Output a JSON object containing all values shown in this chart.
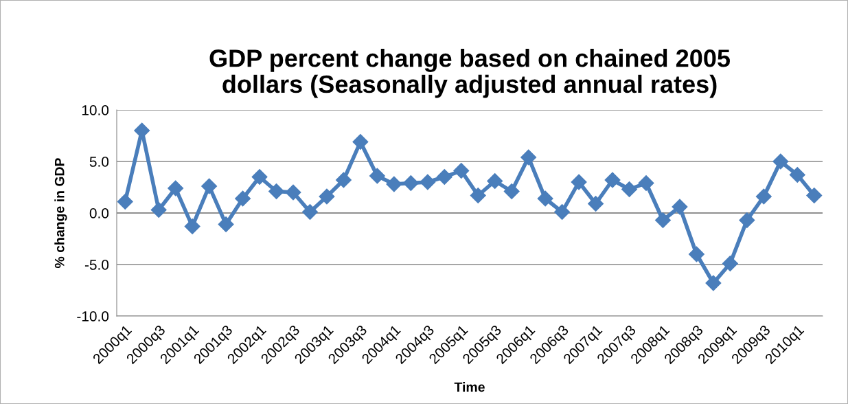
{
  "chart_data": {
    "type": "line",
    "title": "GDP percent change based on chained 2005\ndollars (Seasonally adjusted annual rates)",
    "xlabel": "Time",
    "ylabel": "% change in GDP",
    "categories": [
      "2000q1",
      null,
      "2000q3",
      null,
      "2001q1",
      null,
      "2001q3",
      null,
      "2002q1",
      null,
      "2002q3",
      null,
      "2003q1",
      null,
      "2003q3",
      null,
      "2004q1",
      null,
      "2004q3",
      null,
      "2005q1",
      null,
      "2005q3",
      null,
      "2006q1",
      null,
      "2006q3",
      null,
      "2007q1",
      null,
      "2007q3",
      null,
      "2008q1",
      null,
      "2008q3",
      null,
      "2009q1",
      null,
      "2009q3",
      null,
      "2010q1",
      null
    ],
    "series": [
      {
        "color": "#4a7ebb",
        "values": [
          1.1,
          8.0,
          0.3,
          2.4,
          -1.3,
          2.6,
          -1.1,
          1.4,
          3.5,
          2.1,
          2.0,
          0.1,
          1.6,
          3.2,
          6.9,
          3.6,
          2.8,
          2.9,
          3.0,
          3.5,
          4.1,
          1.7,
          3.1,
          2.1,
          5.4,
          1.4,
          0.1,
          3.0,
          0.9,
          3.2,
          2.3,
          2.9,
          -0.7,
          0.6,
          -4.0,
          -6.8,
          -4.9,
          -0.7,
          1.6,
          5.0,
          3.7,
          1.7
        ]
      }
    ],
    "ylim": [
      -10,
      10
    ],
    "yticks": [
      {
        "value": -10,
        "label": "-10.0"
      },
      {
        "value": -5,
        "label": "-5.0"
      },
      {
        "value": 0,
        "label": "0.0"
      },
      {
        "value": 5,
        "label": "5.0"
      },
      {
        "value": 10,
        "label": "10.0"
      }
    ],
    "grid": "y",
    "marker": "diamond",
    "line_style": "solid"
  }
}
